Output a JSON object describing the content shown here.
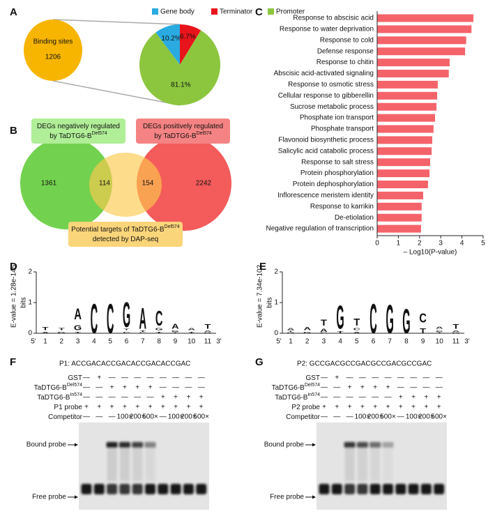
{
  "panel_labels": [
    "A",
    "B",
    "C",
    "D",
    "E",
    "F",
    "G"
  ],
  "chart_data": [
    {
      "type": "pie",
      "categories": [
        "Gene body",
        "Terminator",
        "Promoter"
      ],
      "values": [
        10.2,
        8.7,
        81.1
      ],
      "value_labels": [
        "10.2%",
        "8.7%",
        "81.1%"
      ],
      "colors": [
        "#29abe2",
        "#e8141b",
        "#8cc63f"
      ],
      "legend": "top",
      "source": {
        "label": "Binding sites",
        "value": 1206
      }
    },
    {
      "type": "bar",
      "orientation": "horizontal",
      "categories": [
        "Response to abscisic acid",
        "Response to water deprivation",
        "Response to cold",
        "Defense response",
        "Response to chitin",
        "Abscisic acid-activated signaling",
        "Response to osmotic stress",
        "Cellular response to gibberellin",
        "Sucrose metabolic process",
        "Phosphate ion transport",
        "Phosphate transport",
        "Flavonoid biosynthetic process",
        "Salicylic acid catabolic process",
        "Response to salt stress",
        "Protein phosphorylation",
        "Protein dephosphorylation",
        "Inflorescence meristem identity",
        "Response to karrikin",
        "De-etiolation",
        "Negative regulation of transcription"
      ],
      "values": [
        4.54,
        4.45,
        4.2,
        4.15,
        3.42,
        3.38,
        2.86,
        2.83,
        2.8,
        2.73,
        2.66,
        2.6,
        2.57,
        2.5,
        2.47,
        2.4,
        2.17,
        2.1,
        2.1,
        2.07
      ],
      "color": "#f5636a",
      "xlim": [
        0,
        5
      ],
      "xticks": [
        0,
        1,
        2,
        3,
        4,
        5
      ],
      "xlabel": "– Log10(P-value)"
    },
    {
      "type": "logo",
      "annotation": "E-value = 1.28e-145",
      "ylabel": "bits",
      "ylim": [
        0,
        2
      ],
      "yticks": [
        0,
        1,
        2
      ],
      "x": [
        1,
        2,
        3,
        4,
        5,
        6,
        7,
        8,
        9,
        10,
        11
      ],
      "ends": [
        "5'",
        "3'"
      ],
      "series": [
        {
          "name": "A",
          "color": "#00a651",
          "values": [
            0.1,
            0,
            0.75,
            0,
            0,
            0,
            1.4,
            0,
            0.35,
            0.15,
            0.1
          ]
        },
        {
          "name": "C",
          "color": "#1a3fd6",
          "values": [
            0,
            0,
            0,
            2.0,
            2.0,
            0.1,
            0.05,
            1.0,
            0,
            0,
            0
          ]
        },
        {
          "name": "G",
          "color": "#f5a800",
          "values": [
            0,
            0.1,
            0.35,
            0,
            0,
            1.7,
            0,
            0.15,
            0.1,
            0,
            0.05
          ]
        },
        {
          "name": "T",
          "color": "#e0141c",
          "values": [
            0.2,
            0.15,
            0.1,
            0,
            0,
            0.1,
            0.1,
            0.1,
            0.05,
            0.1,
            0.3
          ]
        }
      ]
    },
    {
      "type": "logo",
      "annotation": "E-value = 7.34e-102",
      "ylabel": "bits",
      "ylim": [
        0,
        2
      ],
      "yticks": [
        0,
        1,
        2
      ],
      "x": [
        1,
        2,
        3,
        4,
        5,
        6,
        7,
        8,
        9,
        10,
        11
      ],
      "ends": [
        "5'",
        "3'"
      ],
      "series": [
        {
          "name": "A",
          "color": "#00a651",
          "values": [
            0.15,
            0.2,
            0.2,
            0,
            0.1,
            0,
            0,
            0,
            0,
            0.15,
            0.1
          ]
        },
        {
          "name": "C",
          "color": "#1a3fd6",
          "values": [
            0,
            0,
            0.05,
            0,
            0.15,
            2.0,
            0,
            0,
            0.6,
            0.1,
            0
          ]
        },
        {
          "name": "G",
          "color": "#f5a800",
          "values": [
            0.05,
            0.1,
            0,
            1.6,
            0,
            0,
            1.95,
            1.65,
            0,
            0,
            0.05
          ]
        },
        {
          "name": "T",
          "color": "#e0141c",
          "values": [
            0.05,
            0,
            0.4,
            0.15,
            0.5,
            0,
            0,
            0,
            0.35,
            0.05,
            0.3
          ]
        }
      ]
    }
  ],
  "venn": {
    "boxes": [
      {
        "lines": [
          {
            "text": "DEGs negatively regulated"
          },
          {
            "text": "by TaDTG6-B",
            "sup": "Del574"
          }
        ]
      },
      {
        "lines": [
          {
            "text": "DEGs positively regulated"
          },
          {
            "text": "by TaDTG6-B",
            "sup": "Del574"
          }
        ]
      },
      {
        "lines": [
          {
            "text": "Potential targets of TaDTG6-B",
            "sup": "Del574"
          },
          {
            "text": "detected by DAP-seq"
          }
        ]
      }
    ],
    "counts": [
      1361,
      114,
      154,
      2242
    ]
  },
  "emsa": [
    {
      "title": "P1: ACCGACACCGACACCGACACCGAC",
      "bound_label": "Bound probe",
      "free_label": "Free probe",
      "rows": [
        {
          "label": {
            "text": "GST"
          },
          "cells": [
            "—",
            "+",
            "—",
            "—",
            "—",
            "—",
            "—",
            "—",
            "—",
            "—"
          ]
        },
        {
          "label": {
            "text": "TaDTG6-B",
            "sup": "Del574"
          },
          "cells": [
            "—",
            "—",
            "+",
            "+",
            "+",
            "+",
            "—",
            "—",
            "—",
            "—"
          ]
        },
        {
          "label": {
            "text": "TaDTG6-B",
            "sup": "In574"
          },
          "cells": [
            "—",
            "—",
            "—",
            "—",
            "—",
            "—",
            "+",
            "+",
            "+",
            "+"
          ]
        },
        {
          "label": {
            "text": "P1 probe"
          },
          "cells": [
            "+",
            "+",
            "+",
            "+",
            "+",
            "+",
            "+",
            "+",
            "+",
            "+"
          ]
        },
        {
          "label": {
            "text": "Competitor"
          },
          "cells": [
            "—",
            "—",
            "—",
            "100×",
            "200×",
            "500×",
            "—",
            "100×",
            "200×",
            "500×"
          ]
        }
      ]
    },
    {
      "title": "P2: GCCGACGCCGACGCCGACGCCGAC",
      "bound_label": "Bound probe",
      "free_label": "Free probe",
      "rows": [
        {
          "label": {
            "text": "GST"
          },
          "cells": [
            "—",
            "+",
            "—",
            "—",
            "—",
            "—",
            "—",
            "—",
            "—",
            "—"
          ]
        },
        {
          "label": {
            "text": "TaDTG6-B",
            "sup": "Del574"
          },
          "cells": [
            "—",
            "—",
            "+",
            "+",
            "+",
            "+",
            "—",
            "—",
            "—",
            "—"
          ]
        },
        {
          "label": {
            "text": "TaDTG6-B",
            "sup": "In574"
          },
          "cells": [
            "—",
            "—",
            "—",
            "—",
            "—",
            "—",
            "+",
            "+",
            "+",
            "+"
          ]
        },
        {
          "label": {
            "text": "P2 probe"
          },
          "cells": [
            "+",
            "+",
            "+",
            "+",
            "+",
            "+",
            "+",
            "+",
            "+",
            "+"
          ]
        },
        {
          "label": {
            "text": "Competitor"
          },
          "cells": [
            "—",
            "—",
            "—",
            "100×",
            "200×",
            "500×",
            "—",
            "100×",
            "200×",
            "500×"
          ]
        }
      ]
    }
  ]
}
